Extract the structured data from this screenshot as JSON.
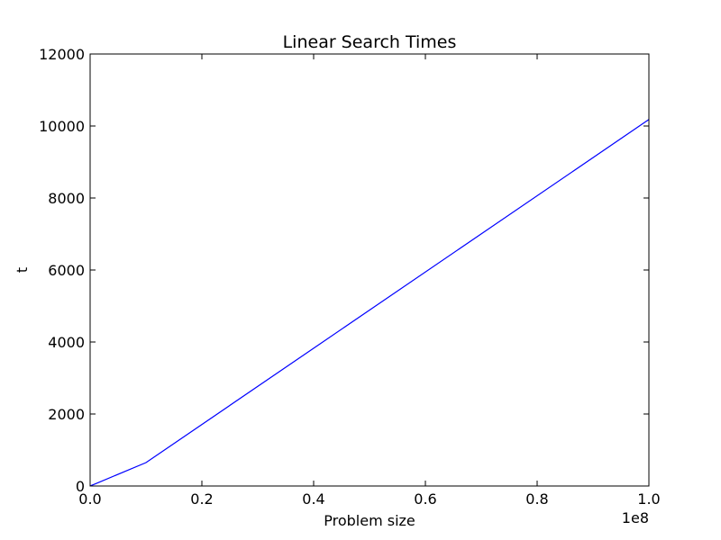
{
  "chart_data": {
    "type": "line",
    "title": "Linear Search Times",
    "xlabel": "Problem size",
    "ylabel": "t",
    "x_offset_label": "1e8",
    "xlim": [
      0,
      100000000
    ],
    "ylim": [
      0,
      12000
    ],
    "x_ticks": [
      0,
      20000000,
      40000000,
      60000000,
      80000000,
      100000000
    ],
    "x_tick_labels": [
      "0.0",
      "0.2",
      "0.4",
      "0.6",
      "0.8",
      "1.0"
    ],
    "y_ticks": [
      0,
      2000,
      4000,
      6000,
      8000,
      10000,
      12000
    ],
    "y_tick_labels": [
      "0",
      "2000",
      "4000",
      "6000",
      "8000",
      "10000",
      "12000"
    ],
    "grid": false,
    "series": [
      {
        "color": "#0000ff",
        "x": [
          0,
          100000,
          1000000,
          10000000,
          100000000
        ],
        "y": [
          0,
          7,
          65,
          650,
          10180
        ]
      }
    ]
  }
}
